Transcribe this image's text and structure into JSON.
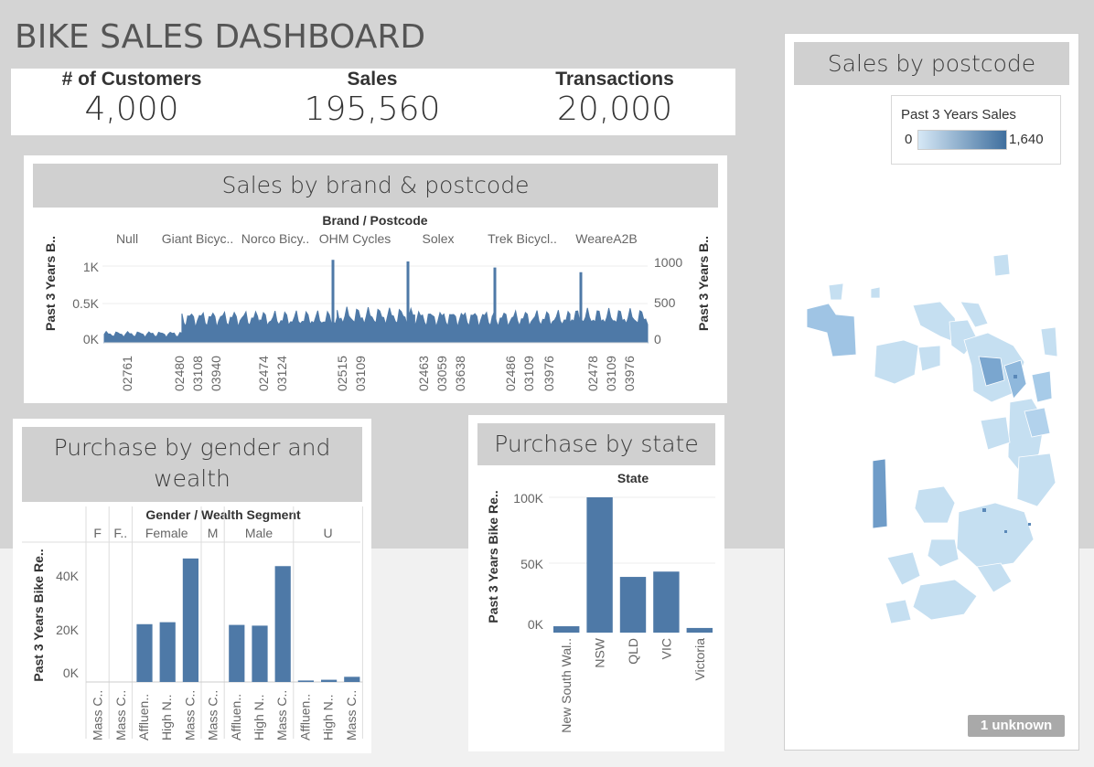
{
  "dashboard": {
    "title": "BIKE SALES DASHBOARD"
  },
  "kpis": [
    {
      "label": "# of Customers",
      "value": "4,000"
    },
    {
      "label": "Sales",
      "value": "195,560"
    },
    {
      "label": "Transactions",
      "value": "20,000"
    }
  ],
  "brand_chart": {
    "title": "Sales by brand & postcode",
    "header": "Brand  /  Postcode",
    "left_axis_label": "Past 3 Years B..",
    "right_axis_label": "Past 3 Years B..",
    "left_ticks": [
      "1K",
      "0.5K",
      "0K"
    ],
    "right_ticks": [
      "1000",
      "500",
      "0"
    ],
    "bar_color": "#4e79a7",
    "brands": [
      "Null",
      "Giant Bicyc..",
      "Norco Bicy..",
      "OHM Cycles",
      "Solex",
      "Trek Bicycl..",
      "WeareA2B"
    ],
    "postcode_labels": [
      "02761",
      "02480",
      "03108",
      "03940",
      "02474",
      "03124",
      "02515",
      "03109",
      "02463",
      "03059",
      "03638",
      "02486",
      "03109",
      "03976",
      "02478",
      "03109",
      "03976"
    ],
    "segments": [
      {
        "brand": "Null",
        "level": 150
      },
      {
        "brand": "Giant Bicyc..",
        "level": 420
      },
      {
        "brand": "Norco Bicy..",
        "level": 410
      },
      {
        "brand": "OHM Cycles",
        "level": 460
      },
      {
        "brand": "Solex",
        "level": 430
      },
      {
        "brand": "Trek Bicycl..",
        "level": 420
      },
      {
        "brand": "WeareA2B",
        "level": 440
      }
    ],
    "peaks": [
      1080,
      1060,
      980,
      920
    ]
  },
  "gender_chart": {
    "title": "Purchase by gender and wealth",
    "header": "Gender  /  Wealth Segment",
    "y_axis_label": "Past 3 Years Bike Re..",
    "y_ticks": [
      "40K",
      "20K",
      "0K"
    ],
    "groups": [
      "F",
      "F..",
      "Female",
      "M",
      "Male",
      "U"
    ],
    "bar_color": "#4e79a7"
  },
  "state_chart": {
    "title": "Purchase by state",
    "header": "State",
    "y_axis_label": "Past 3 Years Bike Re..",
    "y_ticks": [
      "100K",
      "50K",
      "0K"
    ],
    "bar_color": "#4e79a7"
  },
  "map_panel": {
    "title": "Sales by postcode",
    "legend_title": "Past 3 Years Sales",
    "legend_min": "0",
    "legend_max": "1,640",
    "legend_color_low": "#d6e8f6",
    "legend_color_high": "#3f6f9e",
    "unknown_badge": "1 unknown"
  },
  "chart_data": [
    {
      "type": "bar",
      "title": "Purchase by gender and wealth",
      "xlabel": "Gender / Wealth Segment",
      "ylabel": "Past 3 Years Bike Re..",
      "ylim": [
        0,
        55000
      ],
      "categories": [
        "Mass C..",
        "Mass C..",
        "Affluen..",
        "High N..",
        "Mass C..",
        "Mass C..",
        "Affluen..",
        "High N..",
        "Mass C..",
        "Affluen..",
        "High N..",
        "Mass C.."
      ],
      "groups": [
        "F",
        "F..",
        "Female",
        "Female",
        "Female",
        "M",
        "Male",
        "Male",
        "Male",
        "U",
        "U",
        "U"
      ],
      "values": [
        0,
        0,
        23500,
        24300,
        50200,
        0,
        23200,
        22900,
        47100,
        600,
        900,
        2100
      ]
    },
    {
      "type": "bar",
      "title": "Purchase by state",
      "xlabel": "State",
      "ylabel": "Past 3 Years Bike Re..",
      "ylim": [
        0,
        105000
      ],
      "categories": [
        "New South Wal..",
        "NSW",
        "QLD",
        "VIC",
        "Victoria"
      ],
      "values": [
        4800,
        102000,
        42000,
        46000,
        3500
      ]
    }
  ]
}
